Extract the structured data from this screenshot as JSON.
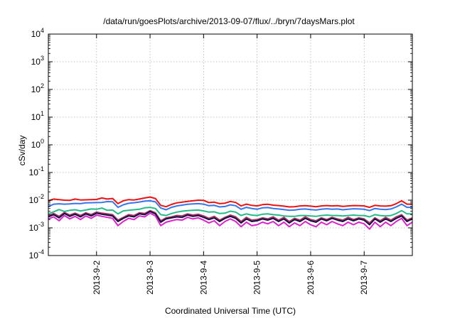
{
  "chart_data": {
    "type": "line",
    "title": "/data/run/goesPlots/archive/2013-09-07/flux/../bryn/7daysMars.plot",
    "xlabel": "Coordinated Universal Time (UTC)",
    "ylabel": "cSv/day",
    "y_scale": "log",
    "ylim": [
      0.0001,
      10000
    ],
    "y_ticks": [
      {
        "value": 0.0001,
        "base": "10",
        "exp": "-4"
      },
      {
        "value": 0.001,
        "base": "10",
        "exp": "-3"
      },
      {
        "value": 0.01,
        "base": "10",
        "exp": "-2"
      },
      {
        "value": 0.1,
        "base": "10",
        "exp": "-1"
      },
      {
        "value": 1,
        "base": "10",
        "exp": "0"
      },
      {
        "value": 10,
        "base": "10",
        "exp": "1"
      },
      {
        "value": 100,
        "base": "10",
        "exp": "2"
      },
      {
        "value": 1000,
        "base": "10",
        "exp": "3"
      },
      {
        "value": 10000,
        "base": "10",
        "exp": "4"
      }
    ],
    "xlim": [
      1.1,
      7.9
    ],
    "x_ticks": [
      {
        "value": 2,
        "label": "2013-9-2"
      },
      {
        "value": 3,
        "label": "2013-9-3"
      },
      {
        "value": 4,
        "label": "2013-9-4"
      },
      {
        "value": 5,
        "label": "2013-9-5"
      },
      {
        "value": 6,
        "label": "2013-9-6"
      },
      {
        "value": 7,
        "label": "2013-9-7"
      }
    ],
    "grid": true,
    "x": [
      1.1,
      1.2,
      1.3,
      1.4,
      1.5,
      1.6,
      1.7,
      1.8,
      1.9,
      2.0,
      2.1,
      2.2,
      2.3,
      2.4,
      2.5,
      2.6,
      2.7,
      2.8,
      2.9,
      3.0,
      3.1,
      3.2,
      3.3,
      3.4,
      3.5,
      3.6,
      3.7,
      3.8,
      3.9,
      4.0,
      4.1,
      4.2,
      4.3,
      4.4,
      4.5,
      4.6,
      4.7,
      4.8,
      4.9,
      5.0,
      5.1,
      5.2,
      5.3,
      5.4,
      5.5,
      5.6,
      5.7,
      5.8,
      5.9,
      6.0,
      6.1,
      6.2,
      6.3,
      6.4,
      6.5,
      6.6,
      6.7,
      6.8,
      6.9,
      7.0,
      7.1,
      7.2,
      7.3,
      7.4,
      7.5,
      7.6,
      7.7,
      7.8,
      7.9
    ],
    "series": [
      {
        "color": "#ee1111",
        "values": [
          0.0095,
          0.011,
          0.0105,
          0.01,
          0.0098,
          0.011,
          0.0102,
          0.0103,
          0.0105,
          0.0106,
          0.012,
          0.011,
          0.0115,
          0.0075,
          0.0095,
          0.0105,
          0.0102,
          0.011,
          0.012,
          0.013,
          0.0115,
          0.0065,
          0.0058,
          0.007,
          0.008,
          0.0085,
          0.009,
          0.0095,
          0.01,
          0.0098,
          0.0082,
          0.0085,
          0.0075,
          0.0078,
          0.009,
          0.0083,
          0.0062,
          0.0072,
          0.0065,
          0.0062,
          0.0069,
          0.0071,
          0.0066,
          0.0064,
          0.0061,
          0.0057,
          0.0058,
          0.0062,
          0.0063,
          0.0061,
          0.0058,
          0.0062,
          0.0064,
          0.0062,
          0.0063,
          0.006,
          0.0062,
          0.0064,
          0.0063,
          0.0062,
          0.0055,
          0.0065,
          0.0062,
          0.0061,
          0.0063,
          0.0075,
          0.0095,
          0.0072,
          0.0072
        ]
      },
      {
        "color": "#3377ee",
        "values": [
          0.0058,
          0.0072,
          0.0074,
          0.0072,
          0.0073,
          0.0076,
          0.0075,
          0.008,
          0.0081,
          0.0082,
          0.0083,
          0.0089,
          0.0088,
          0.0055,
          0.0068,
          0.0077,
          0.0081,
          0.0086,
          0.0092,
          0.0095,
          0.0087,
          0.0052,
          0.0045,
          0.0055,
          0.0062,
          0.0066,
          0.0071,
          0.0073,
          0.0075,
          0.0072,
          0.0063,
          0.0065,
          0.0057,
          0.0059,
          0.0068,
          0.0063,
          0.0047,
          0.0055,
          0.005,
          0.0047,
          0.0053,
          0.0054,
          0.005,
          0.0048,
          0.0046,
          0.0043,
          0.0044,
          0.0047,
          0.0048,
          0.0046,
          0.0044,
          0.0047,
          0.0049,
          0.0047,
          0.0048,
          0.0045,
          0.0047,
          0.0049,
          0.0048,
          0.0047,
          0.0042,
          0.005,
          0.0047,
          0.0046,
          0.0048,
          0.0057,
          0.0072,
          0.0055,
          0.0055
        ]
      },
      {
        "color": "#22bb88",
        "values": [
          0.0033,
          0.0038,
          0.0046,
          0.0039,
          0.0043,
          0.0045,
          0.0041,
          0.0044,
          0.0048,
          0.0047,
          0.0052,
          0.0043,
          0.0044,
          0.0032,
          0.0041,
          0.0043,
          0.0045,
          0.0047,
          0.0053,
          0.0055,
          0.005,
          0.003,
          0.0028,
          0.0033,
          0.0037,
          0.004,
          0.0042,
          0.0043,
          0.0044,
          0.0041,
          0.0037,
          0.0038,
          0.0033,
          0.0034,
          0.004,
          0.0037,
          0.0028,
          0.0032,
          0.0029,
          0.0028,
          0.0031,
          0.0032,
          0.003,
          0.0029,
          0.0027,
          0.0026,
          0.0026,
          0.0028,
          0.0028,
          0.0027,
          0.0026,
          0.0028,
          0.0029,
          0.0028,
          0.0028,
          0.0027,
          0.0028,
          0.0029,
          0.0028,
          0.0028,
          0.0025,
          0.003,
          0.0028,
          0.0027,
          0.0028,
          0.0033,
          0.0042,
          0.0032,
          0.0032
        ]
      },
      {
        "color": "#b03060",
        "values": [
          0.0028,
          0.0033,
          0.0026,
          0.0036,
          0.0029,
          0.0034,
          0.0028,
          0.0035,
          0.003,
          0.0037,
          0.0034,
          0.0032,
          0.003,
          0.0019,
          0.0024,
          0.003,
          0.0028,
          0.0035,
          0.0033,
          0.0042,
          0.0035,
          0.0018,
          0.0023,
          0.0025,
          0.0028,
          0.0027,
          0.0032,
          0.0029,
          0.0031,
          0.0027,
          0.0022,
          0.0026,
          0.0019,
          0.0024,
          0.0029,
          0.0025,
          0.0017,
          0.0024,
          0.0019,
          0.002,
          0.0023,
          0.0021,
          0.0025,
          0.0019,
          0.0024,
          0.0017,
          0.0022,
          0.0019,
          0.0025,
          0.002,
          0.0018,
          0.0023,
          0.002,
          0.0024,
          0.0021,
          0.0019,
          0.0024,
          0.002,
          0.0023,
          0.0021,
          0.0015,
          0.0023,
          0.0018,
          0.0024,
          0.0019,
          0.0025,
          0.003,
          0.0019,
          0.0023
        ]
      },
      {
        "color": "#111144",
        "values": [
          0.0025,
          0.003,
          0.0023,
          0.0033,
          0.0026,
          0.0031,
          0.0025,
          0.0032,
          0.0027,
          0.0034,
          0.0031,
          0.0029,
          0.0027,
          0.0017,
          0.0022,
          0.0027,
          0.0025,
          0.0032,
          0.003,
          0.0039,
          0.0032,
          0.0016,
          0.0021,
          0.0023,
          0.0025,
          0.0024,
          0.0029,
          0.0026,
          0.0028,
          0.0024,
          0.002,
          0.0023,
          0.0017,
          0.0022,
          0.0026,
          0.0022,
          0.0015,
          0.0021,
          0.0017,
          0.0018,
          0.0021,
          0.0019,
          0.0022,
          0.0017,
          0.0021,
          0.0015,
          0.002,
          0.0017,
          0.0022,
          0.0018,
          0.0016,
          0.0021,
          0.0018,
          0.0022,
          0.0019,
          0.0017,
          0.0021,
          0.0018,
          0.0021,
          0.0019,
          0.0013,
          0.0021,
          0.0016,
          0.0021,
          0.0017,
          0.0022,
          0.0027,
          0.0017,
          0.0021
        ]
      },
      {
        "color": "#dd22cc",
        "values": [
          0.0021,
          0.0025,
          0.0018,
          0.0028,
          0.0021,
          0.0026,
          0.002,
          0.0027,
          0.0022,
          0.0029,
          0.0026,
          0.0024,
          0.0022,
          0.0012,
          0.0017,
          0.0022,
          0.002,
          0.0027,
          0.0025,
          0.0034,
          0.0027,
          0.0012,
          0.0016,
          0.0018,
          0.002,
          0.0019,
          0.0024,
          0.0021,
          0.0023,
          0.0019,
          0.0015,
          0.0018,
          0.0012,
          0.0017,
          0.0021,
          0.0017,
          0.0011,
          0.0016,
          0.0012,
          0.0013,
          0.0016,
          0.0014,
          0.0017,
          0.0012,
          0.0016,
          0.0011,
          0.0015,
          0.0012,
          0.0017,
          0.0013,
          0.0011,
          0.0016,
          0.0013,
          0.0017,
          0.0014,
          0.0012,
          0.0016,
          0.0013,
          0.0016,
          0.0014,
          0.0009,
          0.0016,
          0.0011,
          0.0016,
          0.0012,
          0.0017,
          0.0022,
          0.0012,
          0.0016
        ]
      }
    ]
  }
}
